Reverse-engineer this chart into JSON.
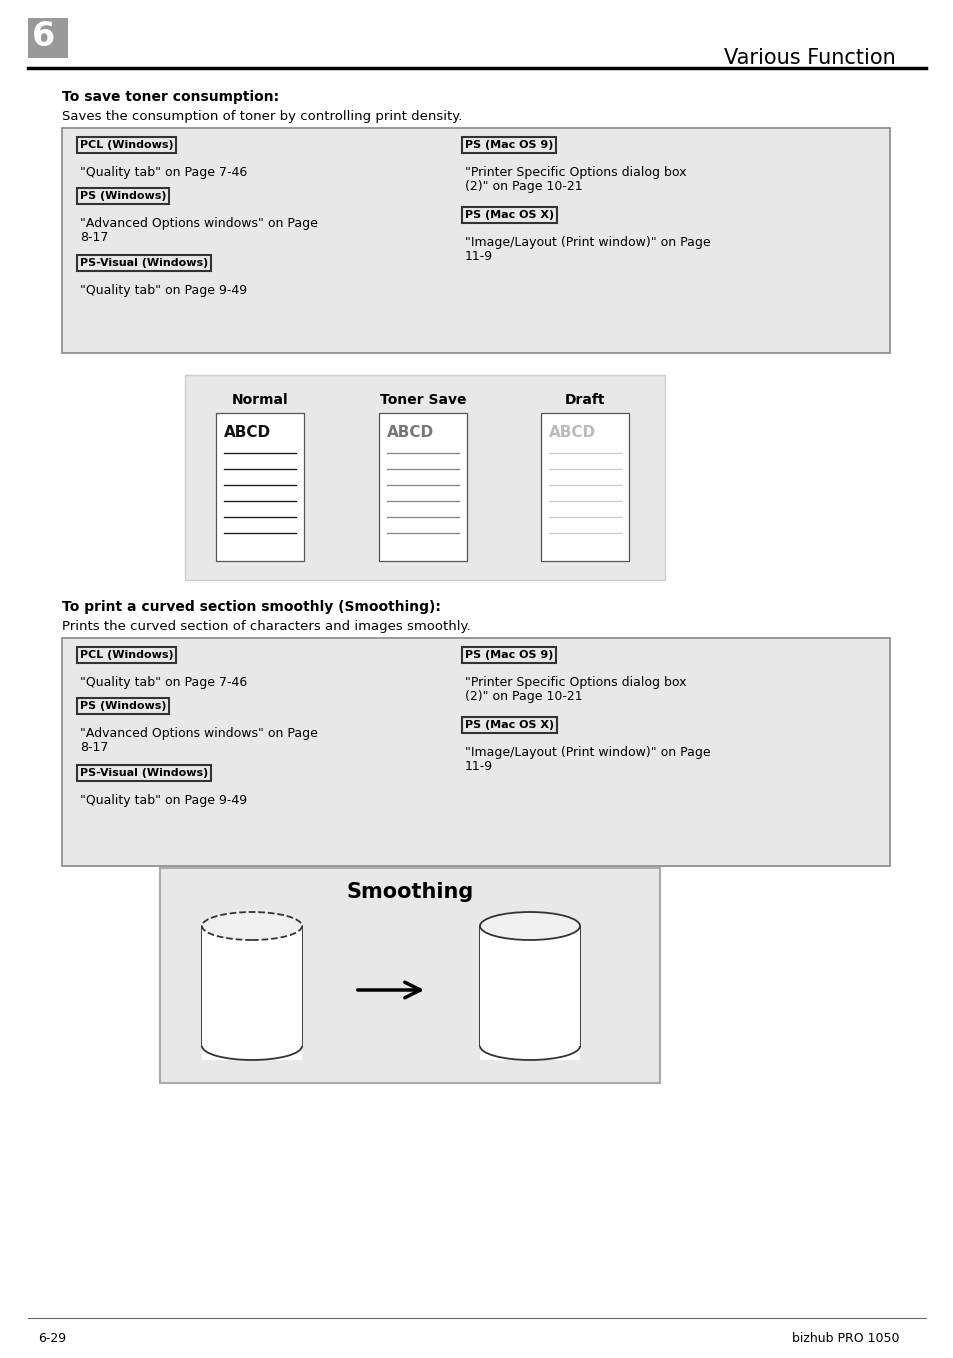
{
  "page_bg": "#ffffff",
  "header_box_color": "#999999",
  "header_num": "6",
  "header_title": "Various Function",
  "section1_bold": "To save toner consumption:",
  "section1_desc": "Saves the consumption of toner by controlling print density.",
  "pcl_win_label": "PCL (Windows)",
  "ps_win_label": "PS (Windows)",
  "psvis_win_label": "PS-Visual (Windows)",
  "ps_mac9_label": "PS (Mac OS 9)",
  "ps_macx_label": "PS (Mac OS X)",
  "pcl_win_text": "\"Quality tab\" on Page 7-46",
  "ps_win_text1": "\"Advanced Options windows\" on Page",
  "ps_win_text2": "8-17",
  "psvis_win_text": "\"Quality tab\" on Page 9-49",
  "ps_mac9_text1": "\"Printer Specific Options dialog box",
  "ps_mac9_text2": "(2)\" on Page 10-21",
  "ps_macx_text1": "\"Image/Layout (Print window)\" on Page",
  "ps_macx_text2": "11-9",
  "diag_title_normal": "Normal",
  "diag_title_tonersave": "Toner Save",
  "diag_title_draft": "Draft",
  "abcd_colors": [
    "#111111",
    "#777777",
    "#bbbbbb"
  ],
  "line_colors": [
    "#222222",
    "#888888",
    "#cccccc"
  ],
  "section2_bold": "To print a curved section smoothly (Smoothing):",
  "section2_desc": "Prints the curved section of characters and images smoothly.",
  "smoothing_title": "Smoothing",
  "footer_left": "6-29",
  "footer_right": "bizhub PRO 1050"
}
